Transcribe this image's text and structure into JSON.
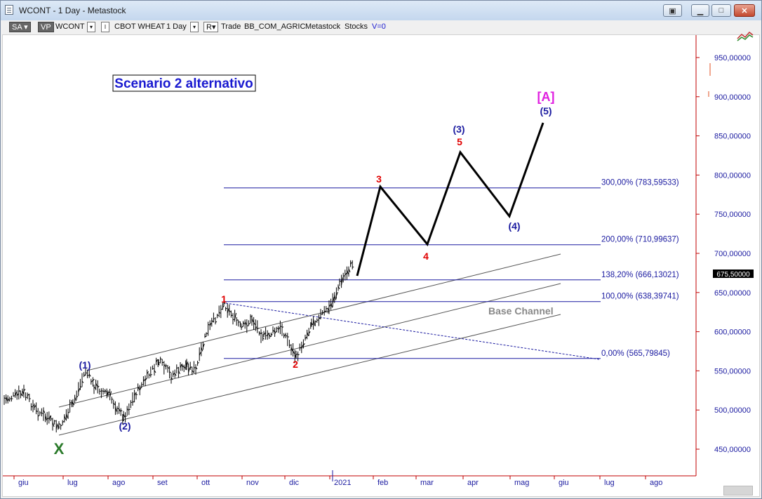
{
  "window": {
    "title": "WCONT - 1 Day - Metastock",
    "buttons": [
      "restore-extra",
      "minimize",
      "maximize",
      "close"
    ]
  },
  "toolbar": {
    "sa": "SA",
    "vp": "VP",
    "symbol": "WCONT",
    "name": "CBOT WHEAT",
    "period": "1 Day",
    "r_label": "R",
    "trade": "Trade",
    "template": "BB_COM_AGRIC",
    "source": "Metastock",
    "type": "Stocks",
    "volume": "V=0"
  },
  "chart": {
    "scenario_label": "Scenario 2 alternativo",
    "channel_label": "Base Channel",
    "current_price": "675,50000",
    "colors": {
      "wave_blue": "#1a1aa0",
      "wave_red": "#e00000",
      "wave_green": "#2a7a2a",
      "wave_magenta": "#e020e0",
      "projection": "#000000",
      "fib_line": "#1a1aa0"
    },
    "wave_labels": {
      "x": "X",
      "w1": "(1)",
      "w2": "(2)",
      "s1": "1",
      "s2": "2",
      "s3": "3",
      "s4": "4",
      "s5": "5",
      "w3": "(3)",
      "w4": "(4)",
      "w5": "(5)",
      "A": "[A]"
    },
    "fib_levels": [
      {
        "label": "300,00% (783,59533)",
        "price": 783.59533
      },
      {
        "label": "200,00% (710,99637)",
        "price": 710.99637
      },
      {
        "label": "138,20% (666,13021)",
        "price": 666.13021
      },
      {
        "label": "100,00% (638,39741)",
        "price": 638.39741
      },
      {
        "label": "0,00% (565,79845)",
        "price": 565.79845
      }
    ],
    "y_axis_ticks": [
      "950,00000",
      "900,00000",
      "850,00000",
      "800,00000",
      "750,00000",
      "700,00000",
      "650,00000",
      "600,00000",
      "550,00000",
      "500,00000",
      "450,00000"
    ],
    "x_axis_ticks": [
      "giu",
      "lug",
      "ago",
      "set",
      "ott",
      "nov",
      "dic",
      "2021",
      "feb",
      "mar",
      "apr",
      "mag",
      "giu",
      "lug",
      "ago"
    ]
  }
}
